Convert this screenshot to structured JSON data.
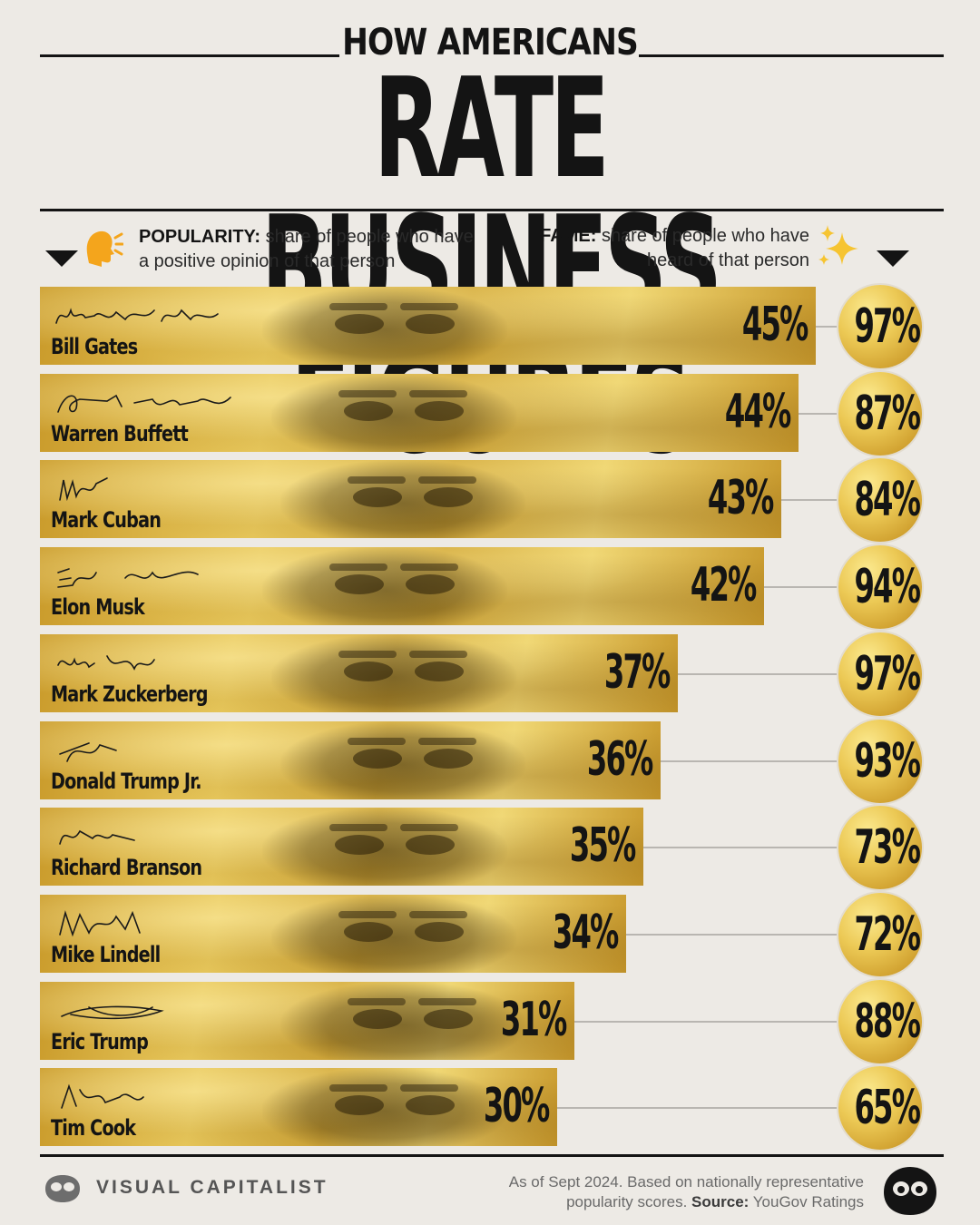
{
  "header": {
    "subtitle": "HOW AMERICANS",
    "title": "RATE BUSINESS FIGURES"
  },
  "legend": {
    "popularity_label": "POPULARITY:",
    "popularity_text": "share of people who have a positive opinion of that person",
    "fame_label": "FAME:",
    "fame_text": "share of people who have heard of that person",
    "popularity_icon": "speaking-head-icon",
    "fame_icon": "sparkles-icon"
  },
  "chart_data": {
    "type": "bar",
    "categories": [
      "Bill Gates",
      "Warren Buffett",
      "Mark Cuban",
      "Elon Musk",
      "Mark Zuckerberg",
      "Donald Trump Jr.",
      "Richard Branson",
      "Mike Lindell",
      "Eric Trump",
      "Tim Cook"
    ],
    "series": [
      {
        "name": "POPULARITY",
        "values": [
          45,
          44,
          43,
          42,
          37,
          36,
          35,
          34,
          31,
          30
        ]
      },
      {
        "name": "FAME",
        "values": [
          97,
          87,
          84,
          94,
          97,
          93,
          73,
          72,
          88,
          65
        ]
      }
    ],
    "popularity_labels": [
      "45%",
      "44%",
      "43%",
      "42%",
      "37%",
      "36%",
      "35%",
      "34%",
      "31%",
      "30%"
    ],
    "fame_labels": [
      "97%",
      "87%",
      "84%",
      "94%",
      "97%",
      "93%",
      "73%",
      "72%",
      "88%",
      "65%"
    ],
    "unit": "%",
    "colors": {
      "bar": "#d9b344",
      "circle": "#e6c04e",
      "text": "#141414",
      "background": "#edeae5"
    }
  },
  "footer": {
    "brand": "VISUAL CAPITALIST",
    "note_prefix": "As of Sept 2024. Based on nationally representative popularity scores.",
    "source_label": "Source:",
    "source_text": "YouGov Ratings",
    "brand_icon": "visual-capitalist-logo-icon"
  }
}
